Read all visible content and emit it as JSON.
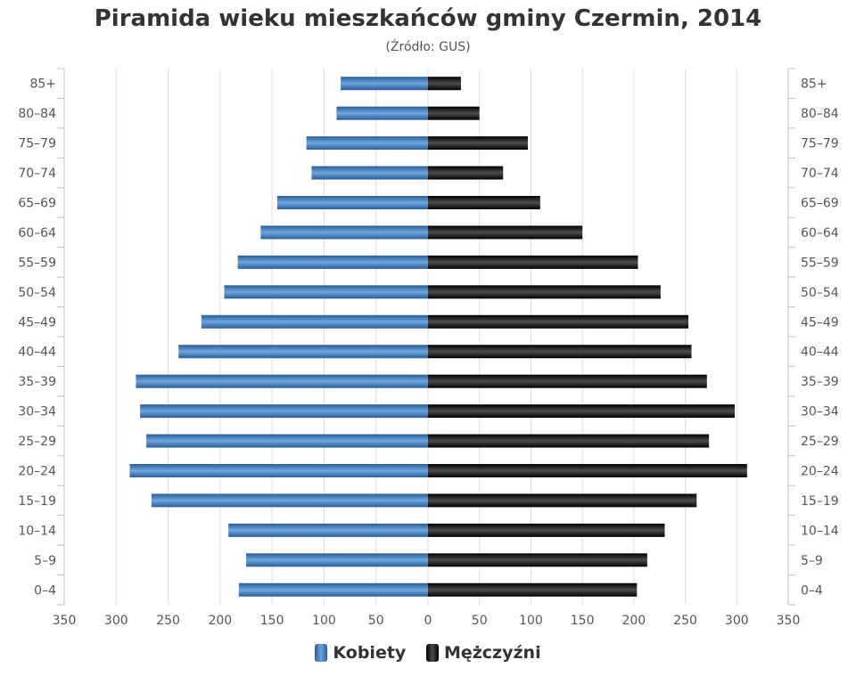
{
  "chart_data": {
    "type": "bar",
    "orientation": "horizontal",
    "subtype": "population-pyramid",
    "title": "Piramida wieku mieszkańców gminy Czermin, 2014",
    "subtitle": "(Źródło: GUS)",
    "categories": [
      "85+",
      "80–84",
      "75–79",
      "70–74",
      "65–69",
      "60–64",
      "55–59",
      "50–54",
      "45–49",
      "40–44",
      "35–39",
      "30–34",
      "25–29",
      "20–24",
      "15–19",
      "10–14",
      "5–9",
      "0–4"
    ],
    "series": [
      {
        "name": "Kobiety",
        "color": "#3d74b4",
        "side": "left",
        "values": [
          84,
          88,
          117,
          112,
          145,
          161,
          183,
          196,
          218,
          240,
          281,
          277,
          271,
          287,
          266,
          192,
          175,
          182
        ]
      },
      {
        "name": "Mężczyźni",
        "color": "#1e1e1e",
        "side": "right",
        "values": [
          32,
          50,
          97,
          73,
          109,
          150,
          204,
          226,
          253,
          256,
          271,
          298,
          273,
          310,
          261,
          230,
          213,
          203
        ]
      }
    ],
    "xlim": [
      -350,
      350
    ],
    "xticks": [
      350,
      300,
      250,
      200,
      150,
      100,
      50,
      0,
      50,
      100,
      150,
      200,
      250,
      300,
      350
    ],
    "grid": true,
    "legend": "bottom-center"
  }
}
